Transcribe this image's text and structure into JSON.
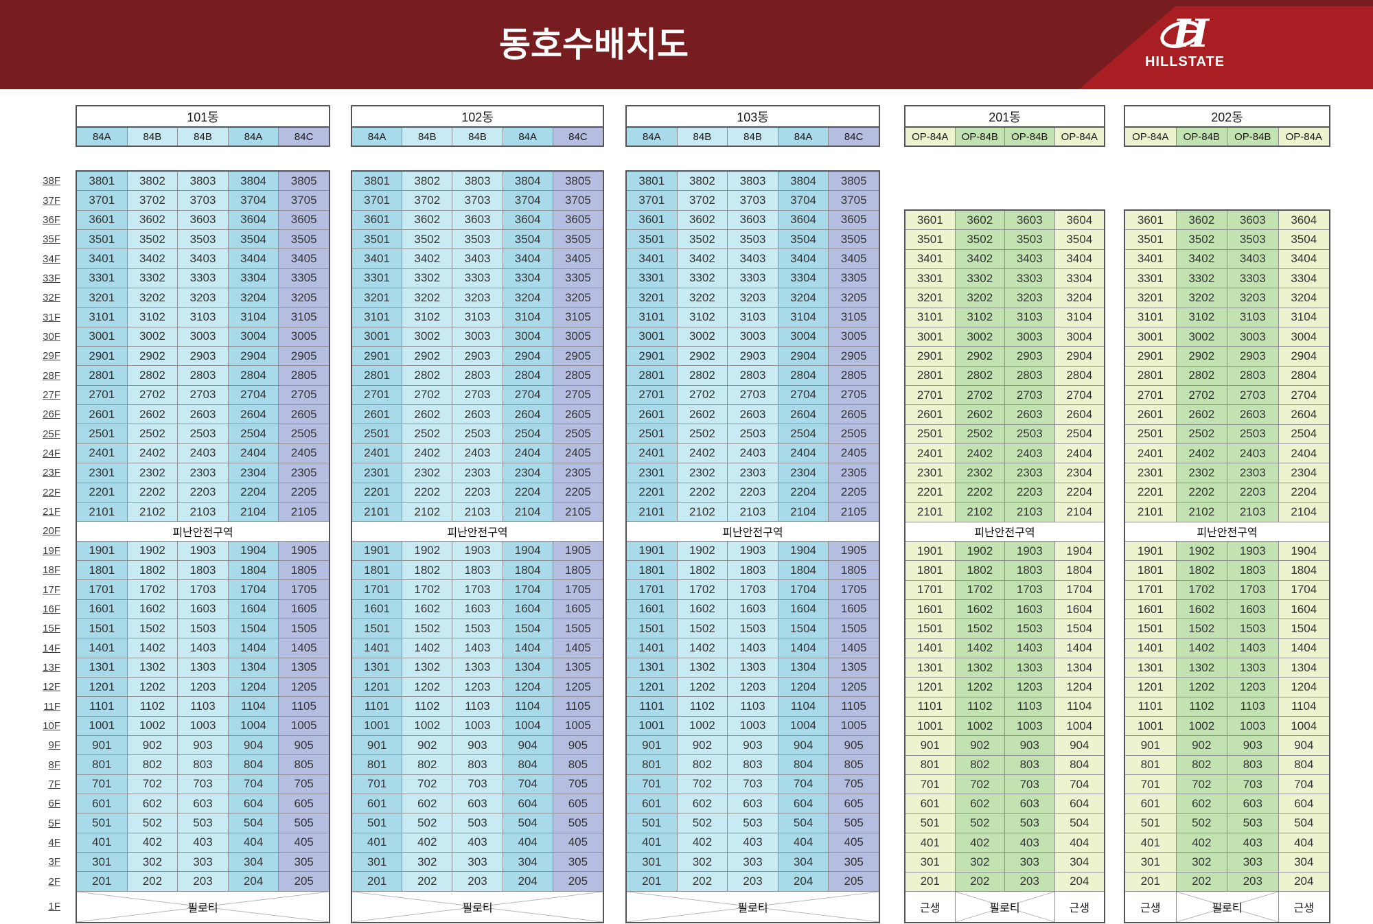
{
  "title": "동호수배치도",
  "brand": "HILLSTATE",
  "palette": {
    "header_maroon": "#771D20",
    "header_red": "#A81E22",
    "type_84a_blue": "#A9DAEA",
    "type_84b_blue": "#C8EAF3",
    "type_84c_purple": "#B5BEE0",
    "type_op84a_yellow": "#EDF2CF",
    "type_op84b_green": "#C3E2B1",
    "grid_line": "#8E8F92",
    "grid_outline": "#54555A"
  },
  "labels": {
    "refuge": "피난안전구역",
    "piloti": "필로티",
    "retail": "근생"
  },
  "floor_labels": [
    "38F",
    "37F",
    "36F",
    "35F",
    "34F",
    "33F",
    "32F",
    "31F",
    "30F",
    "29F",
    "28F",
    "27F",
    "26F",
    "25F",
    "24F",
    "23F",
    "22F",
    "21F",
    "20F",
    "19F",
    "18F",
    "17F",
    "16F",
    "15F",
    "14F",
    "13F",
    "12F",
    "11F",
    "10F",
    "9F",
    "8F",
    "7F",
    "6F",
    "5F",
    "4F",
    "3F",
    "2F",
    "1F"
  ],
  "buildings": [
    {
      "name": "101동",
      "types": [
        "84A",
        "84B",
        "84B",
        "84A",
        "84C"
      ],
      "column_colors": [
        "type_84a_blue",
        "type_84b_blue",
        "type_84b_blue",
        "type_84a_blue",
        "type_84c_purple"
      ],
      "grid": "five_col",
      "top_floor": "38F",
      "refuge_floor": "20F",
      "ground": [
        "필로티"
      ]
    },
    {
      "name": "102동",
      "types": [
        "84A",
        "84B",
        "84B",
        "84A",
        "84C"
      ],
      "column_colors": [
        "type_84a_blue",
        "type_84b_blue",
        "type_84b_blue",
        "type_84a_blue",
        "type_84c_purple"
      ],
      "grid": "five_col",
      "top_floor": "38F",
      "refuge_floor": "20F",
      "ground": [
        "필로티"
      ]
    },
    {
      "name": "103동",
      "types": [
        "84A",
        "84B",
        "84B",
        "84A",
        "84C"
      ],
      "column_colors": [
        "type_84a_blue",
        "type_84b_blue",
        "type_84b_blue",
        "type_84a_blue",
        "type_84c_purple"
      ],
      "grid": "five_col",
      "top_floor": "38F",
      "refuge_floor": "20F",
      "ground": [
        "필로티"
      ]
    },
    {
      "name": "201동",
      "types": [
        "OP-84A",
        "OP-84B",
        "OP-84B",
        "OP-84A"
      ],
      "column_colors": [
        "type_op84a_yellow",
        "type_op84b_green",
        "type_op84b_green",
        "type_op84a_yellow"
      ],
      "grid": "four_col",
      "top_floor": "36F",
      "refuge_floor": "20F",
      "ground": [
        "근생",
        "필로티",
        "근생"
      ]
    },
    {
      "name": "202동",
      "types": [
        "OP-84A",
        "OP-84B",
        "OP-84B",
        "OP-84A"
      ],
      "column_colors": [
        "type_op84a_yellow",
        "type_op84b_green",
        "type_op84b_green",
        "type_op84a_yellow"
      ],
      "grid": "four_col",
      "top_floor": "36F",
      "refuge_floor": "20F",
      "ground": [
        "근생",
        "필로티",
        "근생"
      ]
    }
  ],
  "unit_grids": {
    "five_col": {
      "upper": [
        [
          "3801",
          "3802",
          "3803",
          "3804",
          "3805"
        ],
        [
          "3701",
          "3702",
          "3703",
          "3704",
          "3705"
        ],
        [
          "3601",
          "3602",
          "3603",
          "3604",
          "3605"
        ],
        [
          "3501",
          "3502",
          "3503",
          "3504",
          "3505"
        ],
        [
          "3401",
          "3402",
          "3403",
          "3404",
          "3405"
        ],
        [
          "3301",
          "3302",
          "3303",
          "3304",
          "3305"
        ],
        [
          "3201",
          "3202",
          "3203",
          "3204",
          "3205"
        ],
        [
          "3101",
          "3102",
          "3103",
          "3104",
          "3105"
        ],
        [
          "3001",
          "3002",
          "3003",
          "3004",
          "3005"
        ],
        [
          "2901",
          "2902",
          "2903",
          "2904",
          "2905"
        ],
        [
          "2801",
          "2802",
          "2803",
          "2804",
          "2805"
        ],
        [
          "2701",
          "2702",
          "2703",
          "2704",
          "2705"
        ],
        [
          "2601",
          "2602",
          "2603",
          "2604",
          "2605"
        ],
        [
          "2501",
          "2502",
          "2503",
          "2504",
          "2505"
        ],
        [
          "2401",
          "2402",
          "2403",
          "2404",
          "2405"
        ],
        [
          "2301",
          "2302",
          "2303",
          "2304",
          "2305"
        ],
        [
          "2201",
          "2202",
          "2203",
          "2204",
          "2205"
        ],
        [
          "2101",
          "2102",
          "2103",
          "2104",
          "2105"
        ]
      ],
      "lower": [
        [
          "1901",
          "1902",
          "1903",
          "1904",
          "1905"
        ],
        [
          "1801",
          "1802",
          "1803",
          "1804",
          "1805"
        ],
        [
          "1701",
          "1702",
          "1703",
          "1704",
          "1705"
        ],
        [
          "1601",
          "1602",
          "1603",
          "1604",
          "1605"
        ],
        [
          "1501",
          "1502",
          "1503",
          "1504",
          "1505"
        ],
        [
          "1401",
          "1402",
          "1403",
          "1404",
          "1405"
        ],
        [
          "1301",
          "1302",
          "1303",
          "1304",
          "1305"
        ],
        [
          "1201",
          "1202",
          "1203",
          "1204",
          "1205"
        ],
        [
          "1101",
          "1102",
          "1103",
          "1104",
          "1105"
        ],
        [
          "1001",
          "1002",
          "1003",
          "1004",
          "1005"
        ],
        [
          "901",
          "902",
          "903",
          "904",
          "905"
        ],
        [
          "801",
          "802",
          "803",
          "804",
          "805"
        ],
        [
          "701",
          "702",
          "703",
          "704",
          "705"
        ],
        [
          "601",
          "602",
          "603",
          "604",
          "605"
        ],
        [
          "501",
          "502",
          "503",
          "504",
          "505"
        ],
        [
          "401",
          "402",
          "403",
          "404",
          "405"
        ],
        [
          "301",
          "302",
          "303",
          "304",
          "305"
        ],
        [
          "201",
          "202",
          "203",
          "204",
          "205"
        ]
      ]
    },
    "four_col": {
      "upper": [
        [
          "3601",
          "3602",
          "3603",
          "3604"
        ],
        [
          "3501",
          "3502",
          "3503",
          "3504"
        ],
        [
          "3401",
          "3402",
          "3403",
          "3404"
        ],
        [
          "3301",
          "3302",
          "3303",
          "3304"
        ],
        [
          "3201",
          "3202",
          "3203",
          "3204"
        ],
        [
          "3101",
          "3102",
          "3103",
          "3104"
        ],
        [
          "3001",
          "3002",
          "3003",
          "3004"
        ],
        [
          "2901",
          "2902",
          "2903",
          "2904"
        ],
        [
          "2801",
          "2802",
          "2803",
          "2804"
        ],
        [
          "2701",
          "2702",
          "2703",
          "2704"
        ],
        [
          "2601",
          "2602",
          "2603",
          "2604"
        ],
        [
          "2501",
          "2502",
          "2503",
          "2504"
        ],
        [
          "2401",
          "2402",
          "2403",
          "2404"
        ],
        [
          "2301",
          "2302",
          "2303",
          "2304"
        ],
        [
          "2201",
          "2202",
          "2203",
          "2204"
        ],
        [
          "2101",
          "2102",
          "2103",
          "2104"
        ]
      ],
      "lower": [
        [
          "1901",
          "1902",
          "1903",
          "1904"
        ],
        [
          "1801",
          "1802",
          "1803",
          "1804"
        ],
        [
          "1701",
          "1702",
          "1703",
          "1704"
        ],
        [
          "1601",
          "1602",
          "1603",
          "1604"
        ],
        [
          "1501",
          "1502",
          "1503",
          "1504"
        ],
        [
          "1401",
          "1402",
          "1403",
          "1404"
        ],
        [
          "1301",
          "1302",
          "1303",
          "1304"
        ],
        [
          "1201",
          "1202",
          "1203",
          "1204"
        ],
        [
          "1101",
          "1102",
          "1103",
          "1104"
        ],
        [
          "1001",
          "1002",
          "1003",
          "1004"
        ],
        [
          "901",
          "902",
          "903",
          "904"
        ],
        [
          "801",
          "802",
          "803",
          "804"
        ],
        [
          "701",
          "702",
          "703",
          "704"
        ],
        [
          "601",
          "602",
          "603",
          "604"
        ],
        [
          "501",
          "502",
          "503",
          "504"
        ],
        [
          "401",
          "402",
          "403",
          "404"
        ],
        [
          "301",
          "302",
          "303",
          "304"
        ],
        [
          "201",
          "202",
          "203",
          "204"
        ]
      ]
    }
  }
}
